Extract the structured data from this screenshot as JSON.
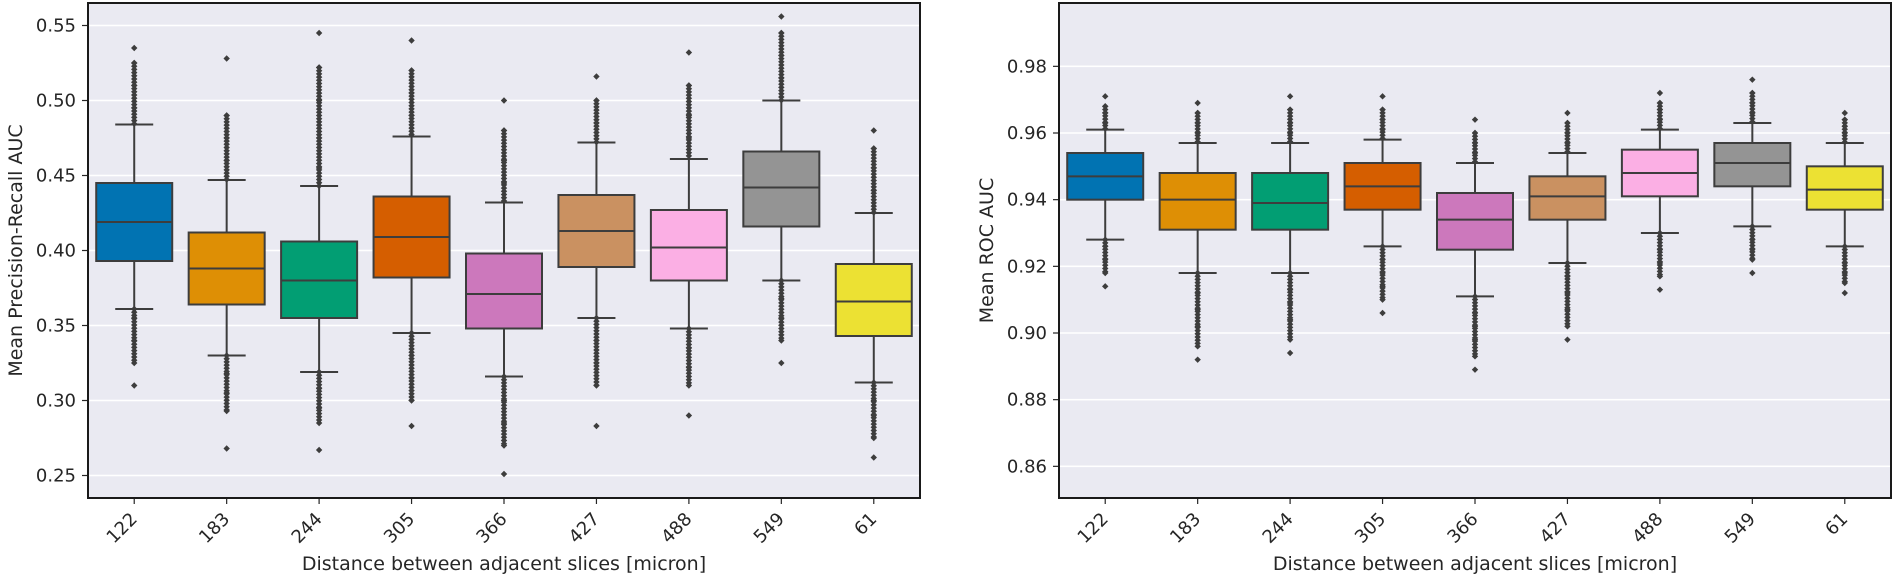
{
  "chart_data": [
    {
      "type": "box",
      "xlabel": "Distance between adjacent slices [micron]",
      "ylabel": "Mean Precision-Recall AUC",
      "ylim": [
        0.235,
        0.565
      ],
      "yticks": [
        0.25,
        0.3,
        0.35,
        0.4,
        0.45,
        0.5,
        0.55
      ],
      "ytick_labels": [
        "0.25",
        "0.30",
        "0.35",
        "0.40",
        "0.45",
        "0.50",
        "0.55"
      ],
      "grid": true,
      "categories": [
        "122",
        "183",
        "244",
        "305",
        "366",
        "427",
        "488",
        "549",
        "61"
      ],
      "colors": [
        "#0173b2",
        "#de8f05",
        "#029e73",
        "#d55e00",
        "#cc78bc",
        "#ca9161",
        "#fbafe4",
        "#949494",
        "#ece133"
      ],
      "boxes": [
        {
          "whislo": 0.361,
          "q1": 0.393,
          "med": 0.419,
          "q3": 0.445,
          "whishi": 0.484,
          "fliers_low": [
            0.31,
            0.325,
            0.34,
            0.355
          ],
          "fliers_high": [
            0.495,
            0.51,
            0.525,
            0.535
          ]
        },
        {
          "whislo": 0.33,
          "q1": 0.364,
          "med": 0.388,
          "q3": 0.412,
          "whishi": 0.447,
          "fliers_low": [
            0.268,
            0.293,
            0.305,
            0.318
          ],
          "fliers_high": [
            0.46,
            0.475,
            0.49,
            0.528
          ]
        },
        {
          "whislo": 0.319,
          "q1": 0.355,
          "med": 0.38,
          "q3": 0.406,
          "whishi": 0.443,
          "fliers_low": [
            0.267,
            0.285,
            0.295,
            0.308
          ],
          "fliers_high": [
            0.455,
            0.475,
            0.5,
            0.522,
            0.545
          ]
        },
        {
          "whislo": 0.345,
          "q1": 0.382,
          "med": 0.409,
          "q3": 0.436,
          "whishi": 0.476,
          "fliers_low": [
            0.283,
            0.3,
            0.315,
            0.33
          ],
          "fliers_high": [
            0.49,
            0.505,
            0.52,
            0.54
          ]
        },
        {
          "whislo": 0.316,
          "q1": 0.348,
          "med": 0.371,
          "q3": 0.398,
          "whishi": 0.432,
          "fliers_low": [
            0.251,
            0.27,
            0.285,
            0.3
          ],
          "fliers_high": [
            0.445,
            0.46,
            0.48,
            0.5
          ]
        },
        {
          "whislo": 0.355,
          "q1": 0.389,
          "med": 0.413,
          "q3": 0.437,
          "whishi": 0.472,
          "fliers_low": [
            0.283,
            0.31,
            0.325,
            0.34
          ],
          "fliers_high": [
            0.485,
            0.5,
            0.516
          ]
        },
        {
          "whislo": 0.348,
          "q1": 0.38,
          "med": 0.402,
          "q3": 0.427,
          "whishi": 0.461,
          "fliers_low": [
            0.29,
            0.31,
            0.322,
            0.335
          ],
          "fliers_high": [
            0.475,
            0.49,
            0.51,
            0.532
          ]
        },
        {
          "whislo": 0.38,
          "q1": 0.416,
          "med": 0.442,
          "q3": 0.466,
          "whishi": 0.5,
          "fliers_low": [
            0.325,
            0.34,
            0.355,
            0.368
          ],
          "fliers_high": [
            0.515,
            0.53,
            0.545,
            0.556
          ]
        },
        {
          "whislo": 0.312,
          "q1": 0.343,
          "med": 0.366,
          "q3": 0.391,
          "whishi": 0.425,
          "fliers_low": [
            0.262,
            0.275,
            0.29,
            0.3
          ],
          "fliers_high": [
            0.44,
            0.455,
            0.468,
            0.48
          ]
        }
      ]
    },
    {
      "type": "box",
      "xlabel": "Distance between adjacent slices [micron]",
      "ylabel": "Mean ROC AUC",
      "ylim": [
        0.8505,
        0.999
      ],
      "yticks": [
        0.86,
        0.88,
        0.9,
        0.92,
        0.94,
        0.96,
        0.98
      ],
      "ytick_labels": [
        "0.86",
        "0.88",
        "0.90",
        "0.92",
        "0.94",
        "0.96",
        "0.98"
      ],
      "grid": true,
      "categories": [
        "122",
        "183",
        "244",
        "305",
        "366",
        "427",
        "488",
        "549",
        "61"
      ],
      "colors": [
        "#0173b2",
        "#de8f05",
        "#029e73",
        "#d55e00",
        "#cc78bc",
        "#ca9161",
        "#fbafe4",
        "#949494",
        "#ece133"
      ],
      "boxes": [
        {
          "whislo": 0.928,
          "q1": 0.94,
          "med": 0.947,
          "q3": 0.954,
          "whishi": 0.961,
          "fliers_low": [
            0.914,
            0.918,
            0.922,
            0.926
          ],
          "fliers_high": [
            0.963,
            0.966,
            0.968,
            0.971
          ]
        },
        {
          "whislo": 0.918,
          "q1": 0.931,
          "med": 0.94,
          "q3": 0.948,
          "whishi": 0.957,
          "fliers_low": [
            0.892,
            0.896,
            0.902,
            0.907,
            0.912
          ],
          "fliers_high": [
            0.96,
            0.963,
            0.966,
            0.969
          ]
        },
        {
          "whislo": 0.918,
          "q1": 0.931,
          "med": 0.939,
          "q3": 0.948,
          "whishi": 0.957,
          "fliers_low": [
            0.894,
            0.898,
            0.904,
            0.909,
            0.913
          ],
          "fliers_high": [
            0.96,
            0.963,
            0.967,
            0.971
          ]
        },
        {
          "whislo": 0.926,
          "q1": 0.937,
          "med": 0.944,
          "q3": 0.951,
          "whishi": 0.958,
          "fliers_low": [
            0.906,
            0.91,
            0.914,
            0.918,
            0.922
          ],
          "fliers_high": [
            0.961,
            0.964,
            0.967,
            0.971
          ]
        },
        {
          "whislo": 0.911,
          "q1": 0.925,
          "med": 0.934,
          "q3": 0.942,
          "whishi": 0.951,
          "fliers_low": [
            0.889,
            0.893,
            0.898,
            0.902,
            0.906
          ],
          "fliers_high": [
            0.954,
            0.957,
            0.96,
            0.964
          ]
        },
        {
          "whislo": 0.921,
          "q1": 0.934,
          "med": 0.941,
          "q3": 0.947,
          "whishi": 0.954,
          "fliers_low": [
            0.898,
            0.902,
            0.907,
            0.912,
            0.917
          ],
          "fliers_high": [
            0.957,
            0.96,
            0.963,
            0.966
          ]
        },
        {
          "whislo": 0.93,
          "q1": 0.941,
          "med": 0.948,
          "q3": 0.955,
          "whishi": 0.961,
          "fliers_low": [
            0.913,
            0.917,
            0.921,
            0.925
          ],
          "fliers_high": [
            0.964,
            0.967,
            0.969,
            0.972
          ]
        },
        {
          "whislo": 0.932,
          "q1": 0.944,
          "med": 0.951,
          "q3": 0.957,
          "whishi": 0.963,
          "fliers_low": [
            0.918,
            0.922,
            0.925,
            0.928
          ],
          "fliers_high": [
            0.966,
            0.969,
            0.972,
            0.976
          ]
        },
        {
          "whislo": 0.926,
          "q1": 0.937,
          "med": 0.943,
          "q3": 0.95,
          "whishi": 0.957,
          "fliers_low": [
            0.912,
            0.915,
            0.918,
            0.921
          ],
          "fliers_high": [
            0.96,
            0.962,
            0.964,
            0.966
          ]
        }
      ]
    }
  ]
}
